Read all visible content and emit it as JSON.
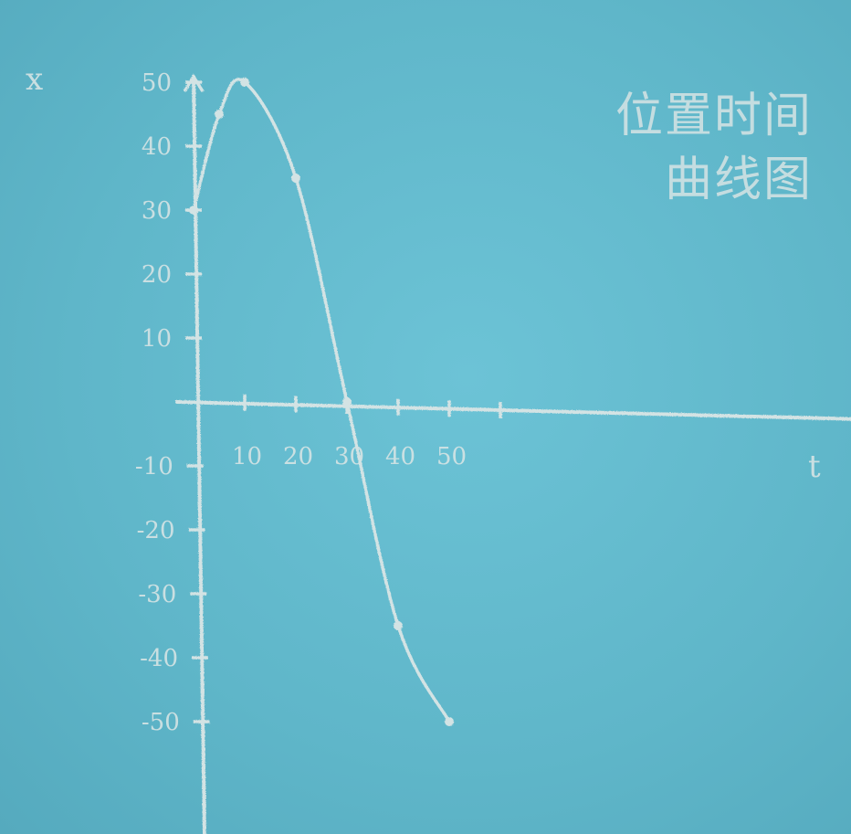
{
  "chart_data": {
    "type": "line",
    "title": [
      "位置时间",
      "曲线图"
    ],
    "xlabel": "t",
    "ylabel": "x",
    "x_ticks": [
      "10",
      "20",
      "30",
      "40",
      "50"
    ],
    "y_ticks": [
      "50",
      "40",
      "30",
      "20",
      "10",
      "-10",
      "-20",
      "-30",
      "-40",
      "-50"
    ],
    "xlim": [
      0,
      120
    ],
    "ylim": [
      -60,
      50
    ],
    "series": [
      {
        "x": [
          0,
          5,
          10,
          20,
          30,
          40,
          50
        ],
        "y": [
          30,
          45,
          50,
          35,
          0,
          -35,
          -50
        ]
      }
    ],
    "colors": {
      "background": "#63b9cc",
      "chalk": "#d3e3e4"
    }
  }
}
